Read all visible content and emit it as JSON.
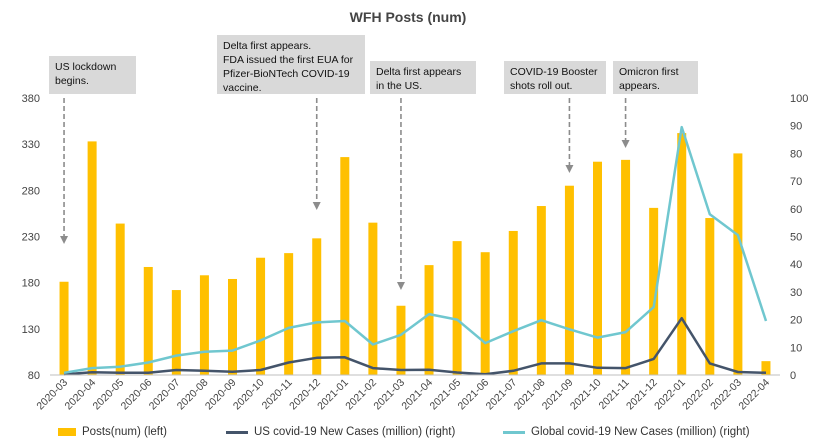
{
  "chart_data": {
    "type": "bar+line",
    "title": "WFH Posts (num)",
    "categories": [
      "2020-03",
      "2020-04",
      "2020-05",
      "2020-06",
      "2020-07",
      "2020-08",
      "2020-09",
      "2020-10",
      "2020-11",
      "2020-12",
      "2021-01",
      "2021-02",
      "2021-03",
      "2021-04",
      "2021-05",
      "2021-06",
      "2021-07",
      "2021-08",
      "2021-09",
      "2021-10",
      "2021-11",
      "2021-12",
      "2022-01",
      "2022-02",
      "2022-03",
      "2022-04"
    ],
    "left_axis": {
      "min": 80,
      "max": 380,
      "ticks": [
        80,
        130,
        180,
        230,
        280,
        330,
        380
      ]
    },
    "right_axis": {
      "min": 0,
      "max": 100,
      "ticks": [
        0,
        10,
        20,
        30,
        40,
        50,
        60,
        70,
        80,
        90,
        100
      ]
    },
    "series": [
      {
        "name": "Posts(num) (left)",
        "type": "bar",
        "axis": "left",
        "color": "#FFC000",
        "values": [
          181,
          333,
          244,
          197,
          172,
          188,
          184,
          207,
          212,
          228,
          316,
          245,
          155,
          199,
          225,
          213,
          236,
          263,
          285,
          311,
          313,
          261,
          342,
          250,
          320,
          95
        ]
      },
      {
        "name": "US covid-19 New Cases (million) (right)",
        "type": "line",
        "axis": "right",
        "color": "#44546A",
        "values": [
          0.2,
          1.0,
          0.8,
          0.8,
          1.8,
          1.5,
          1.2,
          1.8,
          4.5,
          6.2,
          6.4,
          2.5,
          1.8,
          1.9,
          0.9,
          0.3,
          1.5,
          4.2,
          4.2,
          2.6,
          2.5,
          5.8,
          20.5,
          4.2,
          1.1,
          0.8
        ]
      },
      {
        "name": "Global covid-19 New Cases (million) (right)",
        "type": "line",
        "axis": "right",
        "color": "#70C7CF",
        "values": [
          0.8,
          2.5,
          3.0,
          4.5,
          7.0,
          8.4,
          8.8,
          12.5,
          17.0,
          19.0,
          19.5,
          11.0,
          14.5,
          22.0,
          20.0,
          11.5,
          15.8,
          19.8,
          16.5,
          13.5,
          15.5,
          24.5,
          89.5,
          58.0,
          50.5,
          19.5
        ]
      }
    ],
    "annotations": [
      {
        "text": "US lockdown\nbegins.",
        "category": "2020-03"
      },
      {
        "text": "Delta first appears.\nFDA issued the first EUA for\nPfizer-BioNTech COVID-19\nvaccine.",
        "category": "2020-12"
      },
      {
        "text": "Delta first appears\nin the US.",
        "category": "2021-03"
      },
      {
        "text": "COVID-19 Booster\nshots roll out.",
        "category": "2021-09"
      },
      {
        "text": "Omicron first\nappears.",
        "category": "2021-11"
      }
    ],
    "grid": false,
    "legend_position": "bottom"
  }
}
